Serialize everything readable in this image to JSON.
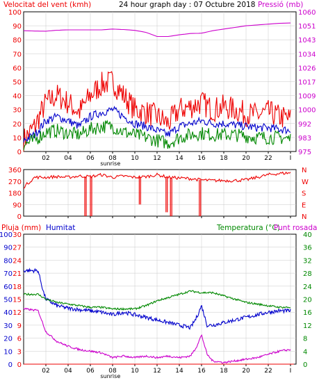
{
  "colors": {
    "wind": "#ee0000",
    "pressure": "#cc00cc",
    "avg_wind": "#0000cc",
    "gust": "#008800",
    "direction": "#ee0000",
    "rain": "#ee0000",
    "humidity": "#0000cc",
    "temperature": "#008800",
    "dewpoint": "#cc00cc",
    "frame": "#000000",
    "grid": "#c8c8c8"
  },
  "header": {
    "wind_label": "Velocitat del vent (kmh)",
    "title": "24 hour graph day : 07 Octubre 2018",
    "pressure_label": "Pressió (mb)"
  },
  "x_ticks": [
    "02",
    "04",
    "06",
    "08",
    "10",
    "12",
    "14",
    "16",
    "18",
    "20",
    "22",
    "I"
  ],
  "sunrise_label": "sunrise",
  "bottom_labels": {
    "rain_label": "Pluja (mm)",
    "humidity_label": "Humitat",
    "temperature_label": "Temperatura (°C)",
    "dewpoint_label": "Punt rosada"
  },
  "chart_data": [
    {
      "type": "line",
      "panel": "wind",
      "x_range": [
        0,
        24.5
      ],
      "left_axis": {
        "ticks": [
          "100",
          "90",
          "80",
          "70",
          "60",
          "50",
          "40",
          "30",
          "20",
          "10",
          "0"
        ],
        "range": [
          0,
          100
        ]
      },
      "right_axis": {
        "ticks": [
          "1060",
          "1051",
          "1043",
          "1034",
          "1026",
          "1017",
          "1009",
          "1000",
          "992",
          "983",
          "975"
        ],
        "range": [
          975,
          1060
        ]
      },
      "series": [
        {
          "key": "wind",
          "color_key": "wind",
          "axis": "left",
          "jitter": 9,
          "points": [
            [
              0,
              8
            ],
            [
              1,
              18
            ],
            [
              2,
              35
            ],
            [
              3,
              40
            ],
            [
              4,
              35
            ],
            [
              5,
              28
            ],
            [
              6,
              40
            ],
            [
              7,
              48
            ],
            [
              8,
              50
            ],
            [
              9,
              40
            ],
            [
              10,
              30
            ],
            [
              11,
              28
            ],
            [
              12,
              25
            ],
            [
              13,
              20
            ],
            [
              14,
              30
            ],
            [
              15,
              32
            ],
            [
              16,
              35
            ],
            [
              17,
              30
            ],
            [
              18,
              32
            ],
            [
              19,
              30
            ],
            [
              20,
              27
            ],
            [
              21,
              26
            ],
            [
              22,
              28
            ],
            [
              23,
              25
            ],
            [
              24,
              23
            ]
          ]
        },
        {
          "key": "pressure",
          "color_key": "pressure",
          "axis": "right",
          "jitter": 0,
          "points": [
            [
              0,
              1048.5
            ],
            [
              1,
              1048.3
            ],
            [
              2,
              1048.2
            ],
            [
              3,
              1048.8
            ],
            [
              4,
              1049
            ],
            [
              5,
              1049
            ],
            [
              6,
              1049
            ],
            [
              7,
              1049
            ],
            [
              8,
              1049.5
            ],
            [
              9,
              1049.2
            ],
            [
              10,
              1048.7
            ],
            [
              11,
              1047.5
            ],
            [
              12,
              1045
            ],
            [
              13,
              1045
            ],
            [
              14,
              1046
            ],
            [
              15,
              1046.8
            ],
            [
              16,
              1047
            ],
            [
              17,
              1048.5
            ],
            [
              18,
              1049.5
            ],
            [
              19,
              1050.5
            ],
            [
              20,
              1051.5
            ],
            [
              21,
              1052
            ],
            [
              22,
              1052.5
            ],
            [
              23,
              1053
            ],
            [
              24,
              1053.2
            ]
          ]
        },
        {
          "key": "avg_wind",
          "color_key": "avg_wind",
          "axis": "left",
          "jitter": 3,
          "points": [
            [
              0,
              8
            ],
            [
              1,
              12
            ],
            [
              2,
              22
            ],
            [
              3,
              25
            ],
            [
              4,
              22
            ],
            [
              5,
              18
            ],
            [
              6,
              25
            ],
            [
              7,
              28
            ],
            [
              8,
              30
            ],
            [
              9,
              25
            ],
            [
              10,
              20
            ],
            [
              11,
              18
            ],
            [
              12,
              15
            ],
            [
              13,
              12
            ],
            [
              14,
              18
            ],
            [
              15,
              20
            ],
            [
              16,
              22
            ],
            [
              17,
              20
            ],
            [
              18,
              20
            ],
            [
              19,
              19
            ],
            [
              20,
              18
            ],
            [
              21,
              17
            ],
            [
              22,
              17
            ],
            [
              23,
              16
            ],
            [
              24,
              15
            ]
          ]
        },
        {
          "key": "gust",
          "color_key": "gust",
          "axis": "left",
          "jitter": 5,
          "points": [
            [
              0,
              5
            ],
            [
              1,
              8
            ],
            [
              2,
              14
            ],
            [
              3,
              15
            ],
            [
              4,
              13
            ],
            [
              5,
              12
            ],
            [
              6,
              16
            ],
            [
              7,
              18
            ],
            [
              8,
              18
            ],
            [
              9,
              14
            ],
            [
              10,
              12
            ],
            [
              11,
              10
            ],
            [
              12,
              8
            ],
            [
              13,
              6
            ],
            [
              14,
              10
            ],
            [
              15,
              12
            ],
            [
              16,
              13
            ],
            [
              17,
              12
            ],
            [
              18,
              12
            ],
            [
              19,
              12
            ],
            [
              20,
              11
            ],
            [
              21,
              10
            ],
            [
              22,
              10
            ],
            [
              23,
              10
            ],
            [
              24,
              9
            ]
          ]
        }
      ]
    },
    {
      "type": "line",
      "panel": "direction",
      "x_range": [
        0,
        24.5
      ],
      "left_axis": {
        "ticks": [
          "360",
          "270",
          "180",
          "90",
          "0"
        ],
        "range": [
          0,
          360
        ]
      },
      "right_axis": {
        "ticks": [
          "N",
          "W",
          "S",
          "E",
          "N"
        ],
        "range": [
          0,
          360
        ]
      },
      "series": [
        {
          "key": "direction",
          "color_key": "direction",
          "axis": "left",
          "jitter": 12,
          "points": [
            [
              0,
              225
            ],
            [
              1,
              300
            ],
            [
              2,
              300
            ],
            [
              3,
              305
            ],
            [
              4,
              300
            ],
            [
              5,
              310
            ],
            [
              6,
              305
            ],
            [
              7,
              320
            ],
            [
              8,
              300
            ],
            [
              9,
              310
            ],
            [
              10,
              300
            ],
            [
              11,
              305
            ],
            [
              12,
              320
            ],
            [
              13,
              300
            ],
            [
              14,
              295
            ],
            [
              15,
              290
            ],
            [
              16,
              280
            ],
            [
              17,
              275
            ],
            [
              18,
              275
            ],
            [
              19,
              275
            ],
            [
              20,
              280
            ],
            [
              21,
              300
            ],
            [
              22,
              320
            ],
            [
              23,
              330
            ],
            [
              24,
              335
            ]
          ],
          "drops": [
            [
              5.5,
              0
            ],
            [
              6.0,
              0
            ],
            [
              10.4,
              90
            ],
            [
              12.8,
              30
            ],
            [
              13.2,
              0
            ],
            [
              15.8,
              0
            ]
          ]
        }
      ]
    },
    {
      "type": "line",
      "panel": "climate",
      "x_range": [
        0,
        24.5
      ],
      "left_axis_humidity": {
        "ticks": [
          "100",
          "90",
          "80",
          "70",
          "60",
          "50",
          "40",
          "30",
          "20",
          "10",
          "0"
        ],
        "range": [
          0,
          100
        ]
      },
      "left_axis_rain": {
        "ticks": [
          "30",
          "27",
          "24",
          "21",
          "18",
          "15",
          "12",
          "9",
          "6",
          "3",
          "0"
        ],
        "range": [
          0,
          30
        ]
      },
      "right_axis_temperature": {
        "ticks": [
          "40",
          "36",
          "32",
          "28",
          "24",
          "20",
          "16",
          "12",
          "8",
          "4",
          "0"
        ],
        "range": [
          0,
          40
        ]
      },
      "series": [
        {
          "key": "humidity",
          "color_key": "humidity",
          "axis": "humidity",
          "jitter": 1.5,
          "points": [
            [
              0,
              72
            ],
            [
              1.3,
              72
            ],
            [
              1.8,
              55
            ],
            [
              2,
              50
            ],
            [
              3,
              45
            ],
            [
              4,
              43
            ],
            [
              5,
              42
            ],
            [
              6,
              41
            ],
            [
              7,
              40
            ],
            [
              8,
              38
            ],
            [
              9,
              40
            ],
            [
              10,
              38
            ],
            [
              11,
              36
            ],
            [
              12,
              34
            ],
            [
              13,
              32
            ],
            [
              14,
              30
            ],
            [
              15,
              28
            ],
            [
              15.5,
              35
            ],
            [
              16,
              45
            ],
            [
              16.5,
              30
            ],
            [
              17,
              30
            ],
            [
              18,
              32
            ],
            [
              19,
              34
            ],
            [
              20,
              36
            ],
            [
              21,
              38
            ],
            [
              22,
              40
            ],
            [
              23,
              41
            ],
            [
              24,
              41
            ]
          ]
        },
        {
          "key": "temperature",
          "color_key": "temperature",
          "axis": "temperature",
          "jitter": 0.3,
          "points": [
            [
              0,
              21.5
            ],
            [
              1.3,
              21.5
            ],
            [
              2,
              20
            ],
            [
              3,
              19
            ],
            [
              4,
              18.5
            ],
            [
              5,
              18
            ],
            [
              6,
              17.5
            ],
            [
              7,
              17.5
            ],
            [
              8,
              17
            ],
            [
              9,
              17
            ],
            [
              10,
              17
            ],
            [
              11,
              18
            ],
            [
              12,
              19.5
            ],
            [
              13,
              20.5
            ],
            [
              14,
              21.5
            ],
            [
              15,
              22.5
            ],
            [
              16,
              22
            ],
            [
              17,
              22
            ],
            [
              18,
              21
            ],
            [
              19,
              20
            ],
            [
              20,
              19
            ],
            [
              21,
              18.5
            ],
            [
              22,
              18
            ],
            [
              23,
              17.5
            ],
            [
              24,
              17.5
            ]
          ]
        },
        {
          "key": "dewpoint",
          "color_key": "dewpoint",
          "axis": "temperature",
          "jitter": 0.3,
          "points": [
            [
              0,
              17
            ],
            [
              1.3,
              16.5
            ],
            [
              2,
              10
            ],
            [
              3,
              7
            ],
            [
              4,
              5.5
            ],
            [
              5,
              4.5
            ],
            [
              6,
              4
            ],
            [
              7,
              3.5
            ],
            [
              8,
              2
            ],
            [
              9,
              2.5
            ],
            [
              10,
              2
            ],
            [
              11,
              2.5
            ],
            [
              12,
              2
            ],
            [
              13,
              2.5
            ],
            [
              14,
              2
            ],
            [
              15,
              2.5
            ],
            [
              15.5,
              5
            ],
            [
              16,
              9
            ],
            [
              16.5,
              3
            ],
            [
              17,
              1
            ],
            [
              18,
              0.5
            ],
            [
              19,
              1
            ],
            [
              20,
              1.5
            ],
            [
              21,
              2
            ],
            [
              22,
              3
            ],
            [
              23,
              4
            ],
            [
              24,
              4.5
            ]
          ]
        },
        {
          "key": "rain",
          "color_key": "rain",
          "axis": "rain",
          "jitter": 0,
          "points": [
            [
              0,
              0
            ],
            [
              24.3,
              0
            ]
          ]
        }
      ]
    }
  ]
}
